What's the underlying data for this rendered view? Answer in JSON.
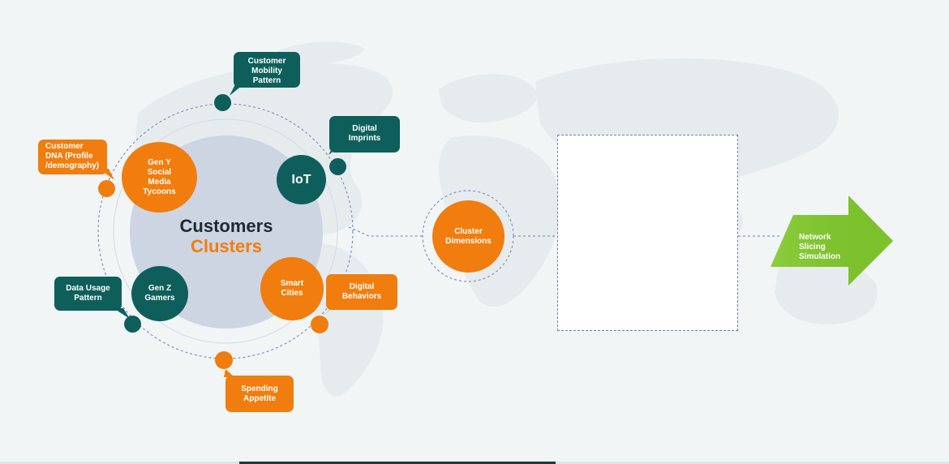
{
  "diagram": {
    "core": {
      "line1": "Customers",
      "line2": "Clusters"
    },
    "segments": [
      {
        "id": "gen-y",
        "lines": [
          "Gen Y",
          "Social",
          "Media",
          "Tycoons"
        ],
        "color": "#f07d0e"
      },
      {
        "id": "iot",
        "lines": [
          "IoT"
        ],
        "color": "#0e5f5b"
      },
      {
        "id": "gen-z",
        "lines": [
          "Gen Z",
          "Gamers"
        ],
        "color": "#0e5f5b"
      },
      {
        "id": "smart-cities",
        "lines": [
          "Smart",
          "Cities"
        ],
        "color": "#f07d0e"
      }
    ],
    "callouts": [
      {
        "id": "customer-mobility",
        "lines": [
          "Customer",
          "Mobility",
          "Pattern"
        ],
        "color": "#0e5f5b"
      },
      {
        "id": "digital-imprints",
        "lines": [
          "Digital",
          "Imprints"
        ],
        "color": "#0e5f5b"
      },
      {
        "id": "customer-dna",
        "lines": [
          "Customer",
          "DNA (Profile",
          "/demography)"
        ],
        "color": "#f07d0e"
      },
      {
        "id": "data-usage",
        "lines": [
          "Data Usage",
          "Pattern"
        ],
        "color": "#0e5f5b"
      },
      {
        "id": "digital-behaviors",
        "lines": [
          "Digital",
          "Behaviors"
        ],
        "color": "#f07d0e"
      },
      {
        "id": "spending-appetite",
        "lines": [
          "Spending",
          "Appetite"
        ],
        "color": "#f07d0e"
      }
    ],
    "cluster_dimensions": {
      "lines": [
        "Cluster",
        "Dimensions"
      ]
    },
    "output": {
      "lines": [
        "Network Slicing",
        "Simulation"
      ],
      "color": "#7cc22b"
    }
  },
  "colors": {
    "orange": "#f07d0e",
    "teal": "#0e5f5b",
    "core": "#cdd4e2",
    "green": "#7cc22b",
    "dashed": "#6f7fb2",
    "background": "#f1f5f6"
  }
}
